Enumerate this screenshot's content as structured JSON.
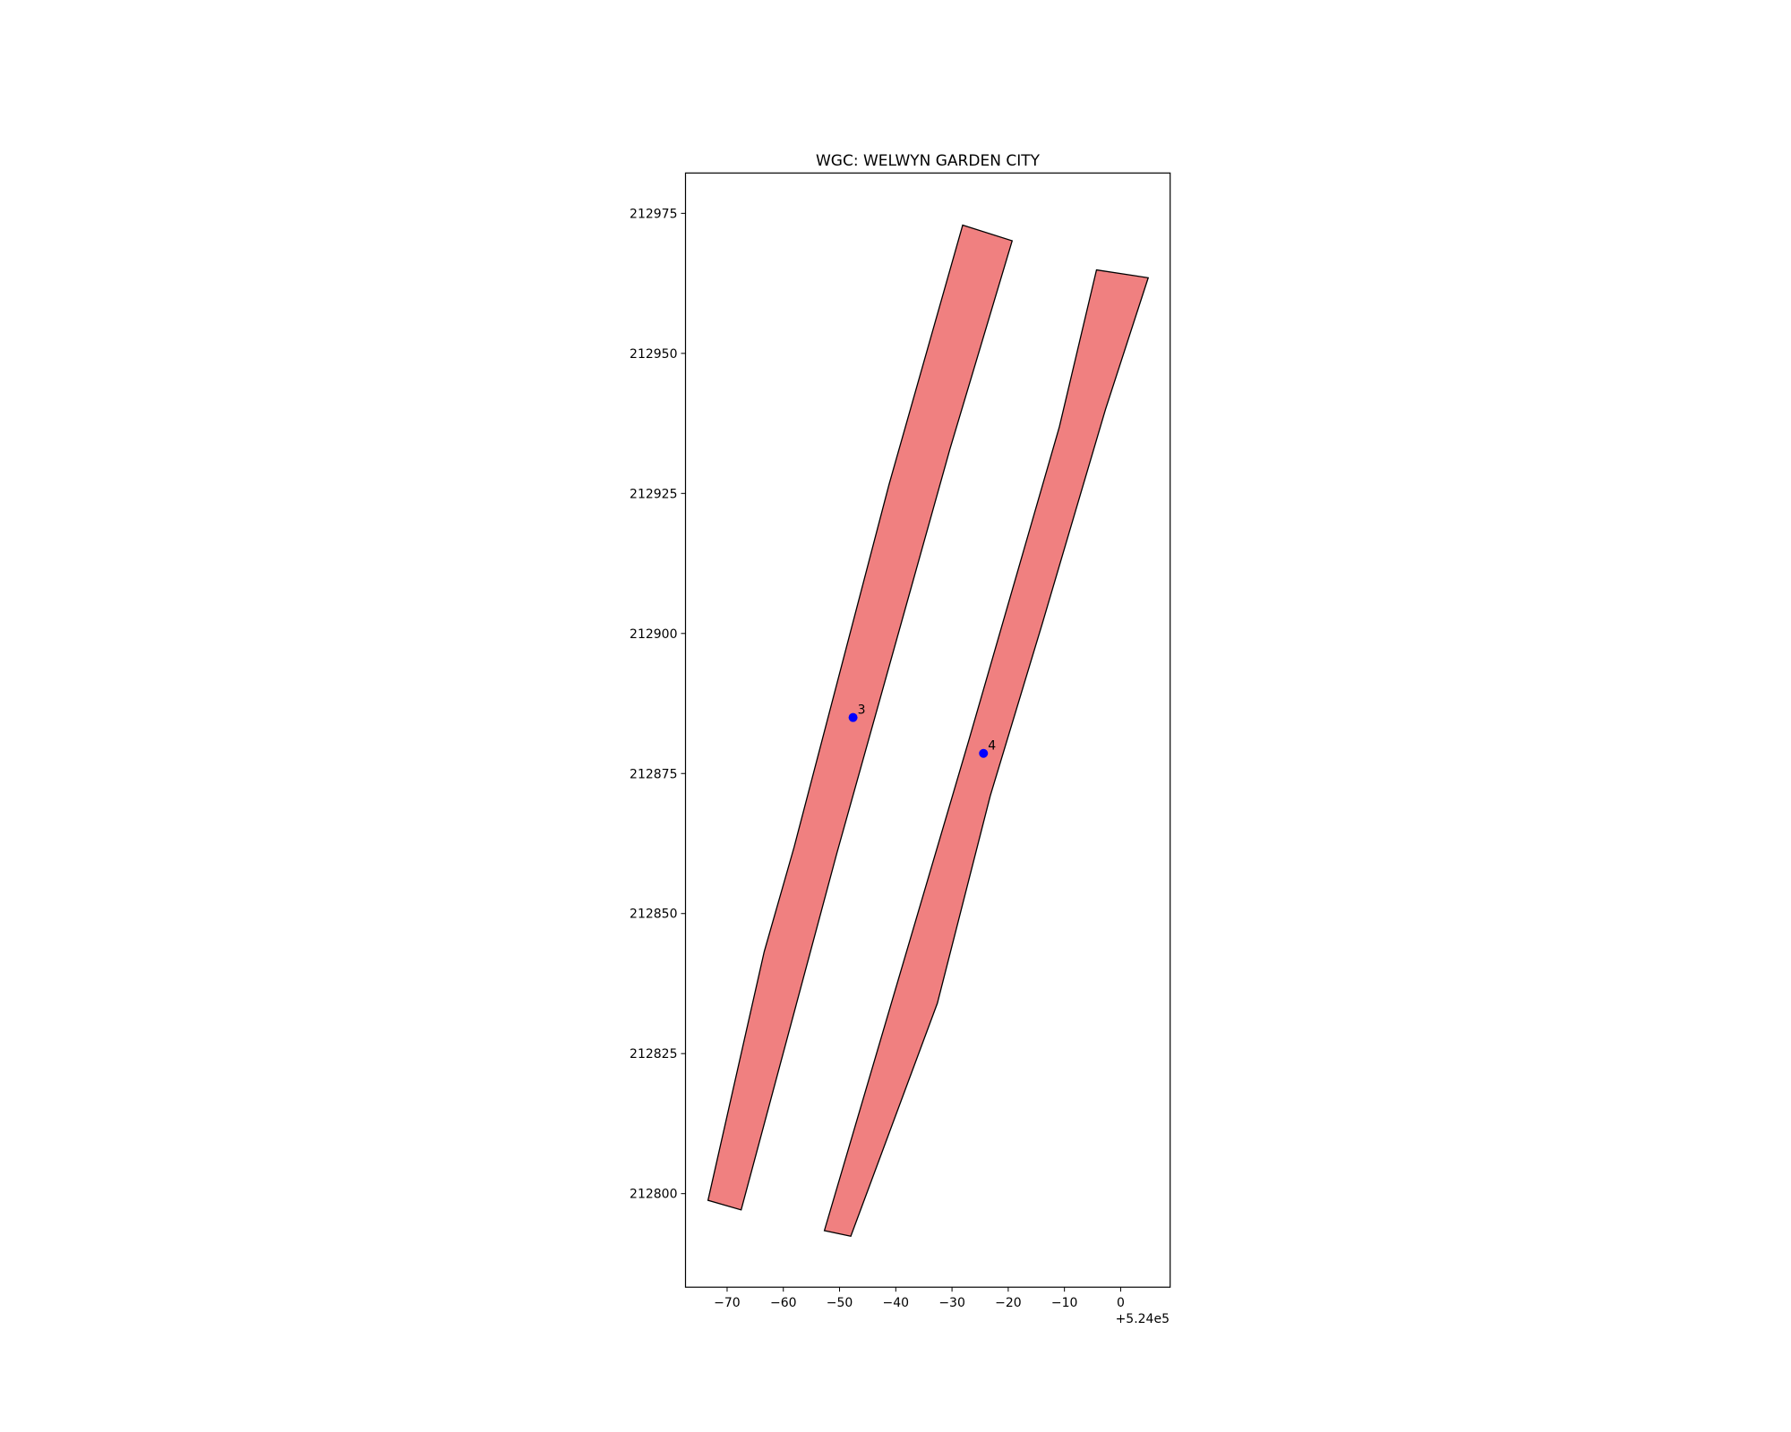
{
  "chart_data": {
    "type": "polygon",
    "title": "WGC: WELWYN GARDEN CITY",
    "x_offset_label": "+5.24e5",
    "polygons": [
      {
        "color": "#f08080",
        "x": [
          -28.1,
          -19.3,
          -30.4,
          -50.5,
          -67.5,
          -73.4,
          -63.4,
          -58.1,
          -41.2
        ],
        "y": [
          212972.9,
          212970.1,
          212932.8,
          212860.7,
          212797.1,
          212798.8,
          212843.2,
          212861.8,
          212926.6
        ]
      },
      {
        "color": "#f08080",
        "x": [
          -4.3,
          4.9,
          -2.7,
          -13.9,
          -23.2,
          -32.6,
          -48.0,
          -52.7,
          -40.2,
          -26.9,
          -10.9
        ],
        "y": [
          212964.9,
          212963.5,
          212940.0,
          212901.9,
          212871.0,
          212834.0,
          212792.4,
          212793.4,
          212836.0,
          212881.3,
          212936.9
        ]
      }
    ],
    "points": {
      "color": "#0000ff",
      "x": [
        -47.6,
        -24.4
      ],
      "y": [
        212885.0,
        212878.6
      ],
      "labels": [
        "3",
        "4"
      ]
    },
    "xlim": [
      -77.4,
      8.8
    ],
    "ylim": [
      212783.3,
      212982.2
    ],
    "xticks": [
      {
        "value": -70,
        "label": "−70"
      },
      {
        "value": -60,
        "label": "−60"
      },
      {
        "value": -50,
        "label": "−50"
      },
      {
        "value": -40,
        "label": "−40"
      },
      {
        "value": -30,
        "label": "−30"
      },
      {
        "value": -20,
        "label": "−20"
      },
      {
        "value": -10,
        "label": "−10"
      },
      0
    ],
    "yticks": [
      212800,
      212825,
      212850,
      212875,
      212900,
      212925,
      212950,
      212975
    ]
  }
}
